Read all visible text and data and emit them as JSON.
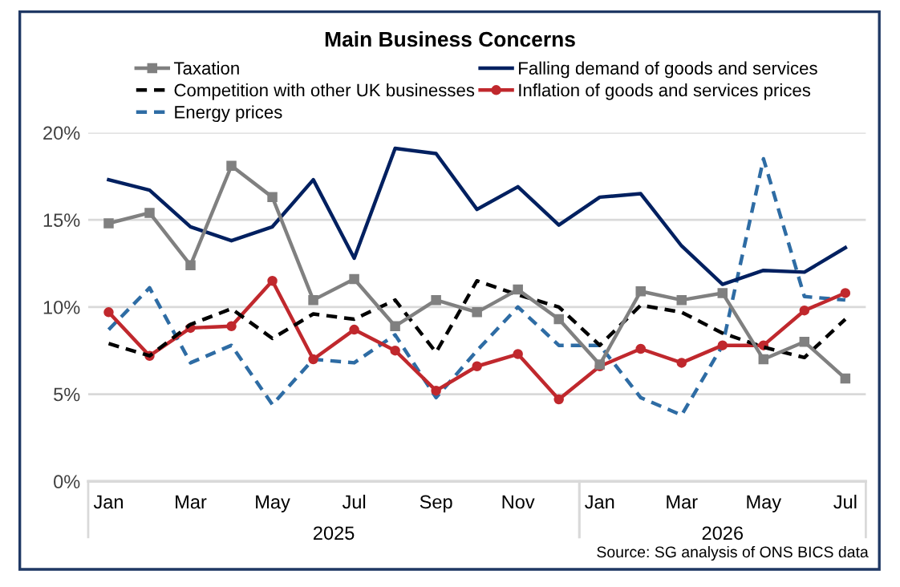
{
  "chart_data": {
    "type": "line",
    "title": "Main Business Concerns",
    "categories": [
      "Jan",
      null,
      "Mar",
      null,
      "May",
      null,
      "Jul",
      null,
      "Sep",
      null,
      "Nov",
      null,
      "Jan",
      null,
      "Mar",
      null,
      "May",
      null,
      "Jul"
    ],
    "series": [
      {
        "name": "Taxation",
        "color": "#808080",
        "marker": "square",
        "values": [
          14.8,
          15.4,
          12.4,
          18.1,
          16.3,
          10.4,
          11.6,
          8.9,
          10.4,
          9.7,
          11.0,
          9.3,
          6.7,
          10.9,
          10.4,
          10.8,
          7.0,
          8.0,
          5.9
        ]
      },
      {
        "name": "Falling demand of goods and services",
        "color": "#002060",
        "values": [
          17.3,
          16.7,
          14.6,
          13.8,
          14.6,
          17.3,
          12.8,
          19.1,
          18.8,
          15.6,
          16.9,
          14.7,
          16.3,
          16.5,
          13.5,
          11.3,
          12.1,
          12.0,
          13.4
        ]
      },
      {
        "name": "Competition with other UK businesses",
        "color": "#000000",
        "line_style": "dashed",
        "values": [
          7.9,
          7.2,
          9.0,
          9.9,
          8.2,
          9.6,
          9.3,
          10.4,
          7.4,
          11.5,
          10.7,
          10.0,
          7.8,
          10.1,
          9.7,
          8.5,
          7.7,
          7.1,
          9.3
        ]
      },
      {
        "name": "Inflation of goods and services prices",
        "color": "#c0282d",
        "marker": "circle",
        "values": [
          9.7,
          7.2,
          8.8,
          8.9,
          11.5,
          7.0,
          8.7,
          7.5,
          5.2,
          6.6,
          7.3,
          4.7,
          6.6,
          7.6,
          6.8,
          7.8,
          7.8,
          9.8,
          10.8
        ]
      },
      {
        "name": "Energy prices",
        "color": "#2e6ca4",
        "line_style": "dashed",
        "values": [
          8.7,
          11.1,
          6.8,
          7.8,
          4.4,
          7.0,
          6.8,
          8.4,
          4.8,
          7.5,
          10.0,
          7.8,
          7.8,
          4.8,
          3.8,
          7.8,
          18.5,
          10.6,
          10.4
        ]
      }
    ],
    "ylim": [
      0,
      20
    ],
    "yticks": [
      {
        "value": 0,
        "label": "0%"
      },
      {
        "value": 5,
        "label": "5%"
      },
      {
        "value": 10,
        "label": "10%"
      },
      {
        "value": 15,
        "label": "15%"
      },
      {
        "value": 20,
        "label": "20%"
      }
    ],
    "grid": "y",
    "legend": "top",
    "marker": "none",
    "line_style": "solid",
    "annotations": [
      "2025",
      "2026",
      "Source: SG analysis of ONS BICS data"
    ]
  }
}
